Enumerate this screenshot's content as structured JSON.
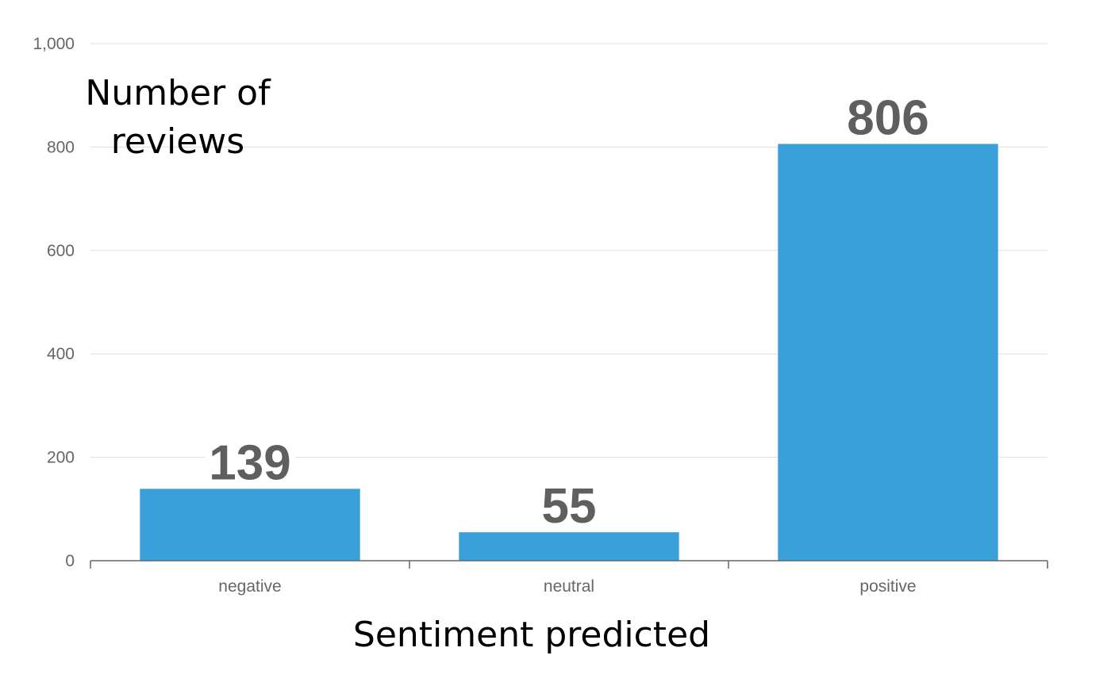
{
  "chart_data": {
    "type": "bar",
    "categories": [
      "negative",
      "neutral",
      "positive"
    ],
    "values": [
      139,
      55,
      806
    ],
    "data_labels": [
      "139",
      "55",
      "806"
    ],
    "ylim": [
      0,
      1000
    ],
    "yticks": [
      0,
      200,
      400,
      600,
      800,
      1000
    ],
    "ytick_labels": [
      "0",
      "200",
      "400",
      "600",
      "800",
      "1,000"
    ],
    "ylabel_lines": [
      "Number of",
      "reviews"
    ],
    "xlabel": "Sentiment predicted",
    "grid": true,
    "bar_color": "#3aa0da",
    "label_color": "#5f5f5f"
  }
}
